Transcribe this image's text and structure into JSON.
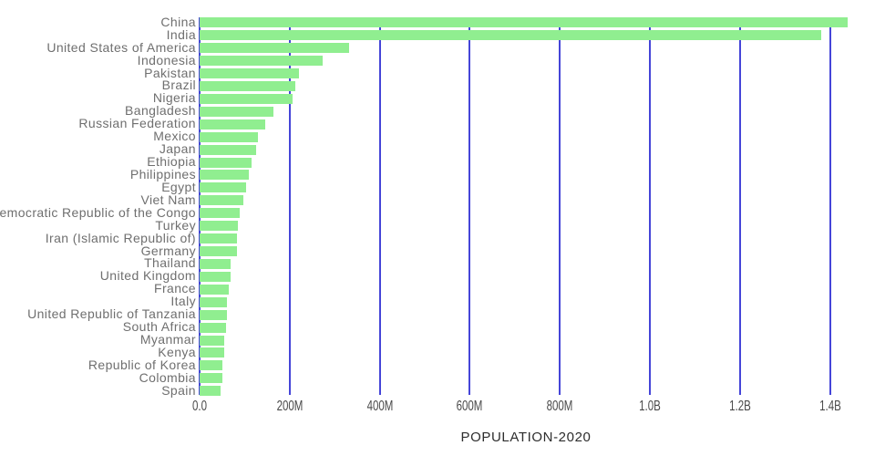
{
  "chart_data": {
    "type": "bar",
    "orientation": "horizontal",
    "title": "",
    "xlabel": "POPULATION-2020",
    "ylabel": "",
    "categories": [
      "China",
      "India",
      "United States of America",
      "Indonesia",
      "Pakistan",
      "Brazil",
      "Nigeria",
      "Bangladesh",
      "Russian Federation",
      "Mexico",
      "Japan",
      "Ethiopia",
      "Philippines",
      "Egypt",
      "Viet Nam",
      "Democratic Republic of the Congo",
      "Turkey",
      "Iran (Islamic Republic of)",
      "Germany",
      "Thailand",
      "United Kingdom",
      "France",
      "Italy",
      "United Republic of Tanzania",
      "South Africa",
      "Myanmar",
      "Kenya",
      "Republic of Korea",
      "Colombia",
      "Spain"
    ],
    "values_millions": [
      1439.32,
      1380.0,
      331.0,
      273.52,
      220.89,
      212.56,
      206.14,
      164.69,
      145.93,
      128.93,
      126.48,
      114.96,
      109.58,
      102.33,
      97.34,
      89.56,
      84.34,
      83.99,
      83.78,
      69.8,
      67.89,
      65.27,
      60.46,
      59.73,
      59.31,
      54.41,
      53.77,
      51.27,
      50.88,
      46.75
    ],
    "x_ticks": [
      "0.0",
      "200M",
      "400M",
      "600M",
      "800M",
      "1.0B",
      "1.2B",
      "1.4B"
    ],
    "x_tick_step_millions": 200,
    "xlim_millions": [
      0,
      1450
    ],
    "grid": true,
    "legend": false,
    "colors": {
      "bar": "#90ee90",
      "gridline": "#4545d8",
      "category_label": "#6f6f6f",
      "tick_label": "#4a4a4a",
      "axis_title": "#2d2d2d",
      "background": "#ffffff"
    }
  }
}
